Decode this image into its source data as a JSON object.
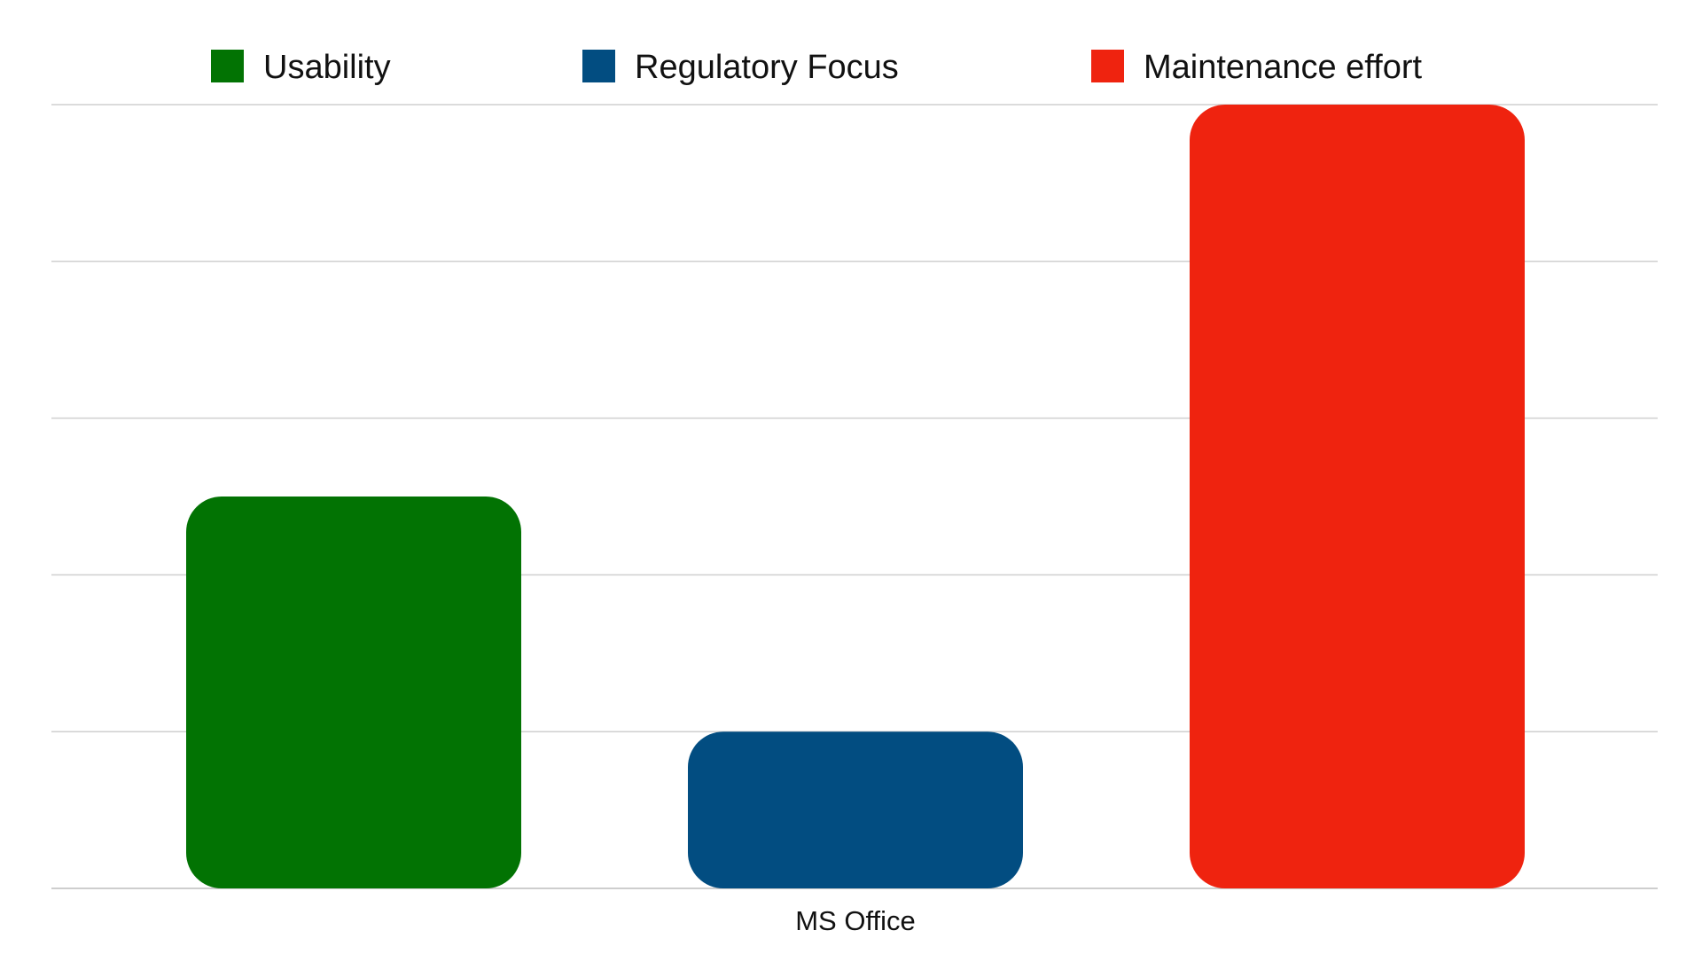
{
  "chart_data": {
    "type": "bar",
    "categories": [
      "MS Office"
    ],
    "series": [
      {
        "name": "Usability",
        "values": [
          2.5
        ],
        "color": "#027303"
      },
      {
        "name": "Regulatory Focus",
        "values": [
          1.0
        ],
        "color": "#024d81"
      },
      {
        "name": "Maintenance effort",
        "values": [
          5.0
        ],
        "color": "#ef230f"
      }
    ],
    "ylim": [
      0,
      5
    ],
    "grid": true,
    "legend_position": "top"
  }
}
